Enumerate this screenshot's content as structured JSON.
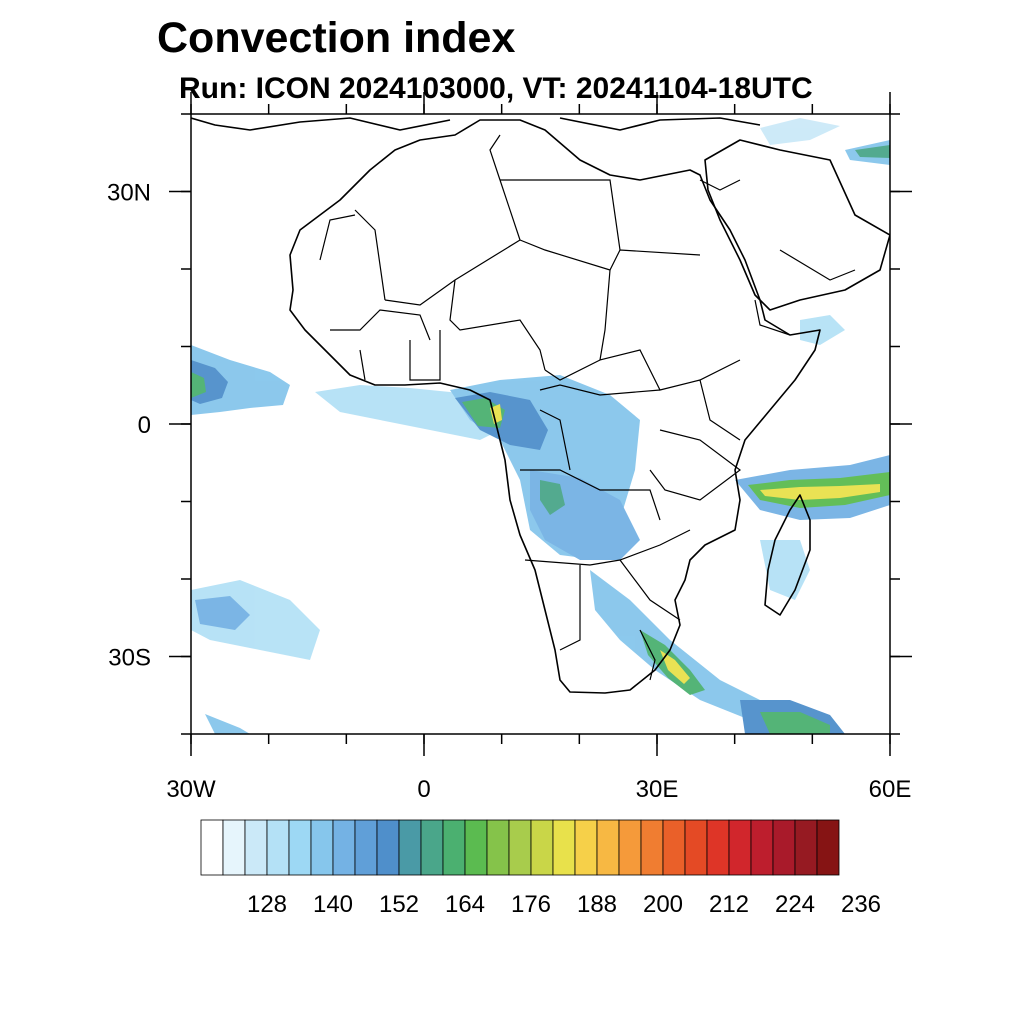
{
  "title": "Convection index",
  "subtitle": "Run: ICON 2024103000,  VT: 20241104-18UTC",
  "map": {
    "lon_range": [
      -30,
      60
    ],
    "lat_range": [
      -40,
      40
    ],
    "lon_ticks": [
      {
        "value": -30,
        "label": "30W"
      },
      {
        "value": 0,
        "label": "0"
      },
      {
        "value": 30,
        "label": "30E"
      },
      {
        "value": 60,
        "label": "60E"
      }
    ],
    "lat_ticks": [
      {
        "value": 30,
        "label": "30N"
      },
      {
        "value": 0,
        "label": "0"
      },
      {
        "value": -30,
        "label": "30S"
      }
    ],
    "minor_lon_step": 10,
    "minor_lat_step": 10
  },
  "colorbar": {
    "colors": [
      "#ffffff",
      "#e6f5fc",
      "#cbe9f8",
      "#b4e1f6",
      "#9dd8f4",
      "#86c6ec",
      "#74b2e4",
      "#609fd8",
      "#4f8fcb",
      "#4a9aa6",
      "#4aa68a",
      "#4bb070",
      "#5bbb50",
      "#85c34a",
      "#a8cc4c",
      "#c9d648",
      "#e8e14b",
      "#f6d049",
      "#f7b843",
      "#f59a3a",
      "#f07d31",
      "#ea6029",
      "#e44a25",
      "#de3527",
      "#d1262c",
      "#bd1e2d",
      "#a91a2a",
      "#961a22",
      "#861414"
    ],
    "labels": [
      "128",
      "140",
      "152",
      "164",
      "176",
      "188",
      "200",
      "212",
      "224",
      "236"
    ]
  }
}
